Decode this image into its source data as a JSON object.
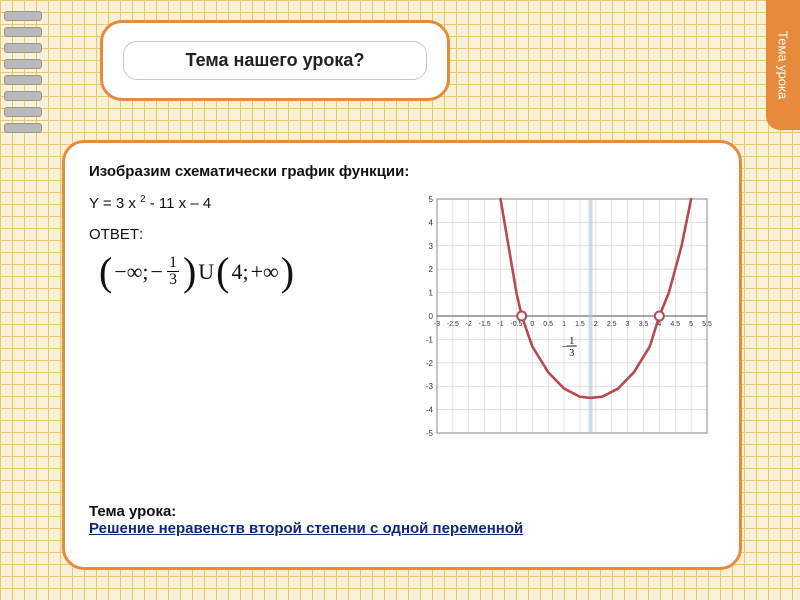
{
  "side_tab": "Тема урока",
  "title": "Тема нашего урока?",
  "body": {
    "prompt": "Изобразим схематически график функции:",
    "formula_prefix": "Y = 3 x ",
    "formula_exp": "2",
    "formula_suffix": " - 11 x – 4",
    "answer_label": "ОТВЕТ:",
    "answer_parts": {
      "open1": "(",
      "neg_inf": "−∞;",
      "minus": "−",
      "frac_num": "1",
      "frac_den": "3",
      "close1": ")",
      "union": "U",
      "open2": "(",
      "four": "4;",
      "pos_inf": "+∞",
      "close2": ")"
    },
    "lesson_label": "Тема урока:",
    "lesson_link": "Решение неравенств второй степени с одной переменной"
  },
  "chart": {
    "x_ticks": [
      -3,
      -2.5,
      -2,
      -1.5,
      -1,
      -0.5,
      0,
      0.5,
      1,
      1.5,
      2,
      2.5,
      3,
      3.5,
      4,
      4.5,
      5,
      5.5
    ],
    "y_ticks": [
      -5,
      -4,
      -3,
      -2,
      -1,
      0,
      1,
      2,
      3,
      4,
      5
    ],
    "grid_color": "#cfcfcf",
    "axis_color": "#888",
    "curve_color": "#b84a4f",
    "marker_stroke": "#b84a4f",
    "marker_fill": "#ffffff",
    "vline_color": "#a9c9d4",
    "tick_font": 8,
    "roots": [
      -0.333,
      4
    ],
    "curve_points": [
      [
        -1.0,
        5.0
      ],
      [
        -0.5,
        1.0
      ],
      [
        -0.333,
        0.0
      ],
      [
        0.0,
        -1.3
      ],
      [
        0.5,
        -2.4
      ],
      [
        1.0,
        -3.1
      ],
      [
        1.5,
        -3.45
      ],
      [
        1.833,
        -3.5
      ],
      [
        2.2,
        -3.45
      ],
      [
        2.7,
        -3.1
      ],
      [
        3.2,
        -2.4
      ],
      [
        3.7,
        -1.3
      ],
      [
        4.0,
        0.0
      ],
      [
        4.3,
        1.0
      ],
      [
        4.7,
        3.0
      ],
      [
        5.0,
        5.0
      ]
    ],
    "xlim": [
      -3,
      5.5
    ],
    "ylim": [
      -5,
      5
    ],
    "frac_label_num": "1",
    "frac_label_den": "3"
  },
  "colors": {
    "orange": "#e88a3c",
    "grid_bg": "#f9f0d8",
    "grid_line": "#e8c770",
    "link": "#0b2b7a"
  }
}
